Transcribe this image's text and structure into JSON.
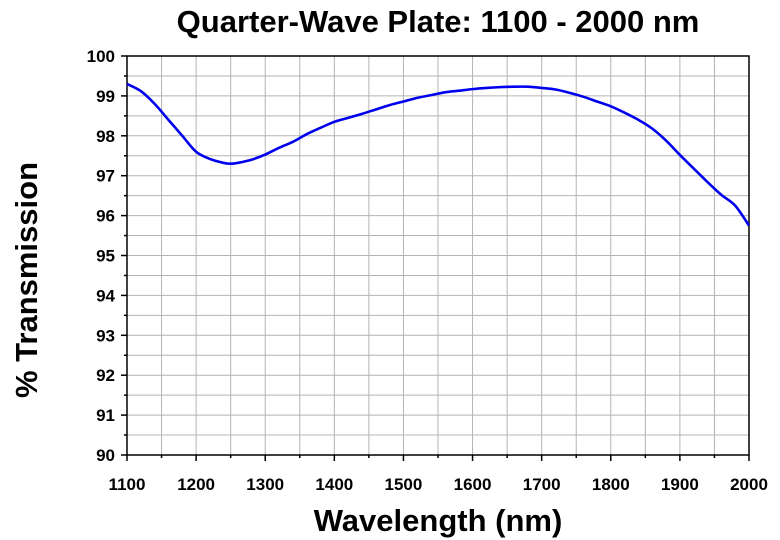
{
  "chart_data": {
    "type": "line",
    "title": "Quarter-Wave Plate: 1100 - 2000 nm",
    "xlabel": "Wavelength (nm)",
    "ylabel": "% Transmission",
    "xlim": [
      1100,
      2000
    ],
    "ylim": [
      90,
      100
    ],
    "xticks": [
      1100,
      1200,
      1300,
      1400,
      1500,
      1600,
      1700,
      1800,
      1900,
      2000
    ],
    "yticks": [
      90,
      91,
      92,
      93,
      94,
      95,
      96,
      97,
      98,
      99,
      100
    ],
    "grid": true,
    "legend": "none",
    "series": [
      {
        "color": "#0000ee",
        "x": [
          1100,
          1120,
          1140,
          1160,
          1180,
          1200,
          1220,
          1240,
          1250,
          1260,
          1280,
          1300,
          1320,
          1340,
          1360,
          1380,
          1400,
          1420,
          1440,
          1460,
          1480,
          1500,
          1520,
          1540,
          1560,
          1580,
          1600,
          1620,
          1640,
          1660,
          1680,
          1700,
          1720,
          1740,
          1760,
          1780,
          1800,
          1820,
          1840,
          1860,
          1880,
          1900,
          1920,
          1940,
          1960,
          1980,
          2000
        ],
        "values": [
          99.3,
          99.12,
          98.8,
          98.4,
          98.0,
          97.6,
          97.42,
          97.32,
          97.3,
          97.32,
          97.4,
          97.53,
          97.7,
          97.85,
          98.04,
          98.2,
          98.35,
          98.45,
          98.55,
          98.66,
          98.77,
          98.86,
          98.95,
          99.02,
          99.09,
          99.13,
          99.17,
          99.2,
          99.22,
          99.23,
          99.23,
          99.2,
          99.16,
          99.08,
          98.98,
          98.86,
          98.74,
          98.58,
          98.4,
          98.18,
          97.88,
          97.52,
          97.18,
          96.84,
          96.52,
          96.25,
          95.75
        ]
      }
    ]
  }
}
